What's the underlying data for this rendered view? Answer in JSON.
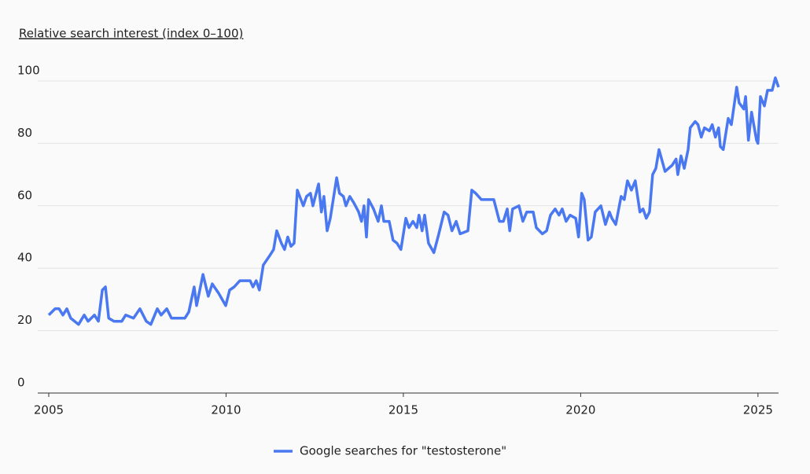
{
  "chart_data": {
    "type": "line",
    "ylabel": "Relative search interest (index 0–100)",
    "x": [
      2005.0,
      2005.18,
      2005.29,
      2005.4,
      2005.51,
      2005.62,
      2005.84,
      2006.0,
      2006.11,
      2006.29,
      2006.4,
      2006.51,
      2006.6,
      2006.69,
      2006.84,
      2007.06,
      2007.17,
      2007.39,
      2007.57,
      2007.75,
      2007.88,
      2008.06,
      2008.17,
      2008.33,
      2008.46,
      2008.84,
      2008.95,
      2009.1,
      2009.17,
      2009.35,
      2009.5,
      2009.61,
      2009.79,
      2009.99,
      2010.1,
      2010.23,
      2010.39,
      2010.68,
      2010.76,
      2010.85,
      2010.94,
      2011.05,
      2011.23,
      2011.34,
      2011.43,
      2011.56,
      2011.65,
      2011.74,
      2011.83,
      2011.92,
      2012.01,
      2012.18,
      2012.27,
      2012.38,
      2012.45,
      2012.61,
      2012.69,
      2012.76,
      2012.85,
      2012.94,
      2013.12,
      2013.2,
      2013.31,
      2013.38,
      2013.49,
      2013.6,
      2013.74,
      2013.82,
      2013.89,
      2013.96,
      2014.02,
      2014.16,
      2014.29,
      2014.38,
      2014.45,
      2014.6,
      2014.71,
      2014.82,
      2014.93,
      2015.07,
      2015.16,
      2015.27,
      2015.38,
      2015.44,
      2015.53,
      2015.6,
      2015.71,
      2015.86,
      2016.0,
      2016.15,
      2016.26,
      2016.37,
      2016.49,
      2016.6,
      2016.82,
      2016.93,
      2017.04,
      2017.2,
      2017.55,
      2017.71,
      2017.82,
      2017.93,
      2018.0,
      2018.08,
      2018.26,
      2018.37,
      2018.48,
      2018.66,
      2018.75,
      2018.92,
      2019.04,
      2019.15,
      2019.28,
      2019.39,
      2019.48,
      2019.59,
      2019.7,
      2019.86,
      2019.94,
      2020.03,
      2020.1,
      2020.21,
      2020.3,
      2020.41,
      2020.57,
      2020.7,
      2020.81,
      2020.88,
      2020.99,
      2021.14,
      2021.23,
      2021.32,
      2021.43,
      2021.54,
      2021.67,
      2021.76,
      2021.85,
      2021.94,
      2022.03,
      2022.12,
      2022.21,
      2022.38,
      2022.58,
      2022.69,
      2022.74,
      2022.83,
      2022.92,
      2023.03,
      2023.09,
      2023.23,
      2023.31,
      2023.4,
      2023.49,
      2023.63,
      2023.71,
      2023.8,
      2023.89,
      2023.94,
      2024.02,
      2024.16,
      2024.25,
      2024.4,
      2024.47,
      2024.6,
      2024.65,
      2024.73,
      2024.82,
      2024.96,
      2025.0,
      2025.07,
      2025.18,
      2025.27,
      2025.4,
      2025.49,
      2025.58
    ],
    "series": [
      {
        "name": "Google searches for \"testosterone\"",
        "color": "#4a78f0",
        "values": [
          25,
          27,
          27,
          25,
          27,
          24,
          22,
          25,
          23,
          25,
          23,
          33,
          34,
          24,
          23,
          23,
          25,
          24,
          27,
          23,
          22,
          27,
          25,
          27,
          24,
          24,
          26,
          34,
          28,
          38,
          31,
          35,
          32,
          28,
          33,
          34,
          36,
          36,
          34,
          36,
          33,
          41,
          44,
          46,
          52,
          48,
          46,
          50,
          47,
          48,
          65,
          60,
          63,
          64,
          60,
          67,
          58,
          63,
          52,
          56,
          69,
          64,
          63,
          60,
          63,
          61,
          58,
          55,
          60,
          50,
          62,
          59,
          55,
          60,
          55,
          55,
          49,
          48,
          46,
          56,
          53,
          55,
          53,
          57,
          52,
          57,
          48,
          45,
          51,
          58,
          57,
          52,
          55,
          51,
          52,
          65,
          64,
          62,
          62,
          55,
          55,
          59,
          52,
          59,
          60,
          55,
          58,
          58,
          53,
          51,
          52,
          57,
          59,
          57,
          59,
          55,
          57,
          56,
          50,
          64,
          62,
          49,
          50,
          58,
          60,
          54,
          58,
          56,
          54,
          63,
          62,
          68,
          65,
          68,
          58,
          59,
          56,
          58,
          70,
          72,
          78,
          71,
          73,
          75,
          70,
          76,
          72,
          78,
          85,
          87,
          86,
          82,
          85,
          84,
          86,
          82,
          85,
          79,
          78,
          88,
          86,
          98,
          93,
          91,
          95,
          81,
          90,
          81,
          80,
          95,
          92,
          97,
          97,
          101,
          98
        ]
      }
    ],
    "xlim": [
      2004.69,
      2025.58
    ],
    "xticks": [
      2005,
      2010,
      2015,
      2020,
      2025
    ],
    "ylim": [
      0,
      100
    ],
    "yticks": [
      0,
      20,
      40,
      60,
      80,
      100
    ],
    "grid": true
  }
}
